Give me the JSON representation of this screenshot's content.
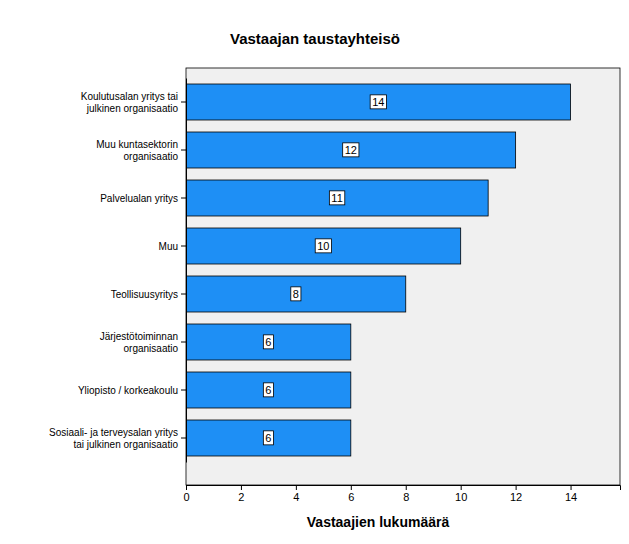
{
  "chart_data": {
    "type": "bar",
    "orientation": "horizontal",
    "title": "Vastaajan taustayhteisö",
    "x_label": "Vastaajien lukumäärä",
    "categories": [
      "Koulutusalan yritys tai\njulkinen organisaatio",
      "Muu kuntasektorin\norganisaatio",
      "Palvelualan yritys",
      "Muu",
      "Teollisuusyritys",
      "Järjestötoiminnan\norganisaatio",
      "Yliopisto / korkeakoulu",
      "Sosiaali- ja terveysalan yritys\ntai julkinen organisaatio"
    ],
    "values": [
      14,
      12,
      11,
      10,
      8,
      6,
      6,
      6
    ],
    "color": "#1e8ff5",
    "xlim": [
      0,
      15.8
    ],
    "xticks": [
      0,
      2,
      4,
      6,
      8,
      10,
      12,
      14
    ],
    "grid": false,
    "data_labels": true
  }
}
